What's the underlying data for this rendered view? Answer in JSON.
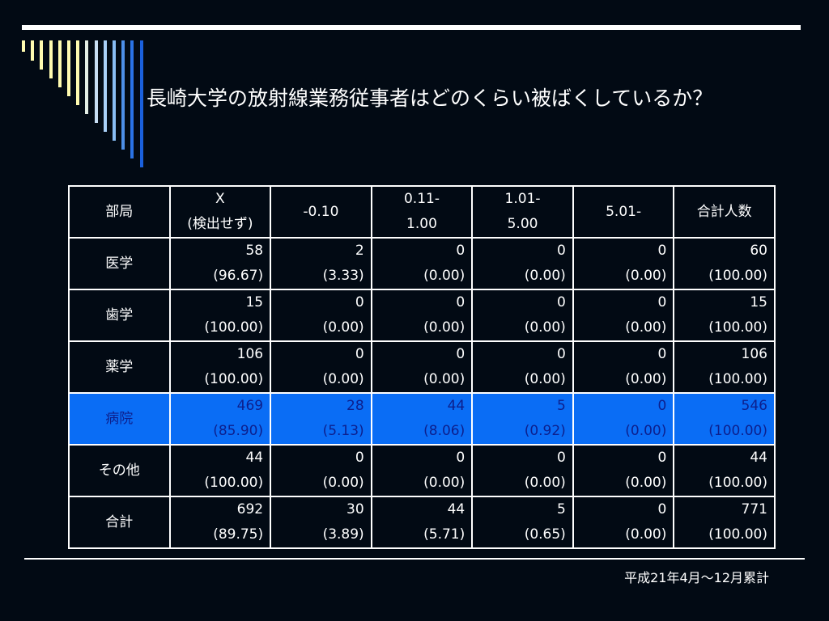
{
  "title": "長崎大学の放射線業務従事者はどのくらい被ばくしているか？",
  "footnote": "平成21年4月～12月累計",
  "colors": {
    "background": "#020a14",
    "highlight_row": "#0a6df5",
    "highlight_text": "#0d1f8c",
    "deco_bars": [
      "#fffbb0",
      "#fffbb0",
      "#fffbb0",
      "#fffbb0",
      "#fffbb0",
      "#fffbb0",
      "#fffbb0",
      "#e4efe6",
      "#c8dff5",
      "#a9d0f8",
      "#88bdf5",
      "#4d8fe8",
      "#2a73e6",
      "#1a60dd"
    ]
  },
  "table": {
    "headers": [
      [
        "部局"
      ],
      [
        "X",
        "(検出せず)"
      ],
      [
        "-0.10"
      ],
      [
        "0.11-",
        "1.00"
      ],
      [
        "1.01-",
        "5.00"
      ],
      [
        "5.01-"
      ],
      [
        "合計人数"
      ]
    ],
    "rows": [
      {
        "label": "医学",
        "highlight": false,
        "cells": [
          [
            "58",
            "(96.67)"
          ],
          [
            "2",
            "(3.33)"
          ],
          [
            "0",
            "(0.00)"
          ],
          [
            "0",
            "(0.00)"
          ],
          [
            "0",
            "(0.00)"
          ],
          [
            "60",
            "(100.00)"
          ]
        ]
      },
      {
        "label": "歯学",
        "highlight": false,
        "cells": [
          [
            "15",
            "(100.00)"
          ],
          [
            "0",
            "(0.00)"
          ],
          [
            "0",
            "(0.00)"
          ],
          [
            "0",
            "(0.00)"
          ],
          [
            "0",
            "(0.00)"
          ],
          [
            "15",
            "(100.00)"
          ]
        ]
      },
      {
        "label": "薬学",
        "highlight": false,
        "cells": [
          [
            "106",
            "(100.00)"
          ],
          [
            "0",
            "(0.00)"
          ],
          [
            "0",
            "(0.00)"
          ],
          [
            "0",
            "(0.00)"
          ],
          [
            "0",
            "(0.00)"
          ],
          [
            "106",
            "(100.00)"
          ]
        ]
      },
      {
        "label": "病院",
        "highlight": true,
        "cells": [
          [
            "469",
            "(85.90)"
          ],
          [
            "28",
            "(5.13)"
          ],
          [
            "44",
            "(8.06)"
          ],
          [
            "5",
            "(0.92)"
          ],
          [
            "0",
            "(0.00)"
          ],
          [
            "546",
            "(100.00)"
          ]
        ]
      },
      {
        "label": "その他",
        "highlight": false,
        "cells": [
          [
            "44",
            "(100.00)"
          ],
          [
            "0",
            "(0.00)"
          ],
          [
            "0",
            "(0.00)"
          ],
          [
            "0",
            "(0.00)"
          ],
          [
            "0",
            "(0.00)"
          ],
          [
            "44",
            "(100.00)"
          ]
        ]
      },
      {
        "label": "合計",
        "highlight": false,
        "cells": [
          [
            "692",
            "(89.75)"
          ],
          [
            "30",
            "(3.89)"
          ],
          [
            "44",
            "(5.71)"
          ],
          [
            "5",
            "(0.65)"
          ],
          [
            "0",
            "(0.00)"
          ],
          [
            "771",
            "(100.00)"
          ]
        ]
      }
    ]
  }
}
